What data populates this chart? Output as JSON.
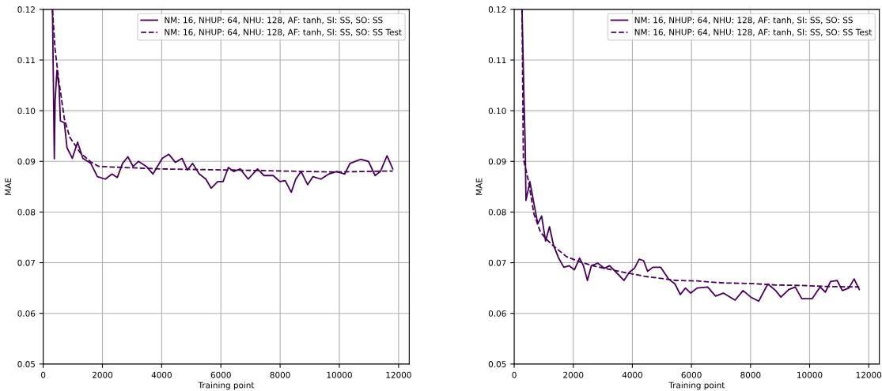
{
  "chart_data": [
    {
      "type": "line",
      "xlabel": "Training point",
      "ylabel": "MAE",
      "xlim": [
        0,
        12360
      ],
      "ylim": [
        0.05,
        0.12
      ],
      "xticks": [
        0,
        2000,
        4000,
        6000,
        8000,
        10000,
        12000
      ],
      "yticks": [
        0.05,
        0.06,
        0.07,
        0.08,
        0.09,
        {
          "value": 0.1,
          "label": "0.10"
        },
        0.11,
        0.12
      ],
      "grid": true,
      "legend": "top right",
      "series": [
        {
          "name": "NM: 16, NHUP: 64, NHU: 128, AF: tanh, SI: SS, SO: SS",
          "color": "#440154",
          "line_style": "solid",
          "x": [
            313,
            375,
            402,
            464,
            536,
            580,
            714,
            804,
            982,
            1161,
            1340,
            1607,
            1831,
            2099,
            2322,
            2500,
            2679,
            2858,
            3036,
            3215,
            3483,
            3706,
            4019,
            4242,
            4465,
            4688,
            4867,
            5045,
            5269,
            5492,
            5671,
            5894,
            6072,
            6251,
            6430,
            6653,
            6921,
            7233,
            7457,
            7769,
            7992,
            8171,
            8376,
            8528,
            8707,
            8930,
            9109,
            9377,
            9644,
            9912,
            10180,
            10359,
            10716,
            10984,
            11207,
            11386,
            11609,
            11805
          ],
          "values": [
            0.1199,
            0.0905,
            0.102,
            0.108,
            0.1046,
            0.098,
            0.0976,
            0.0927,
            0.0906,
            0.0938,
            0.0906,
            0.0896,
            0.087,
            0.0865,
            0.0875,
            0.0868,
            0.0896,
            0.0909,
            0.089,
            0.09,
            0.089,
            0.0875,
            0.0906,
            0.0914,
            0.0898,
            0.0906,
            0.0883,
            0.0896,
            0.0875,
            0.0865,
            0.0847,
            0.086,
            0.086,
            0.0888,
            0.088,
            0.0885,
            0.0865,
            0.0885,
            0.0872,
            0.0872,
            0.086,
            0.0862,
            0.0839,
            0.0865,
            0.088,
            0.0854,
            0.087,
            0.0865,
            0.0875,
            0.088,
            0.0875,
            0.0896,
            0.0904,
            0.09,
            0.0872,
            0.088,
            0.0911,
            0.0885
          ]
        },
        {
          "name": "NM: 16, NHUP: 64, NHU: 128, AF: tanh, SI: SS, SO: SS Test",
          "color": "#440154",
          "line_style": "dashed",
          "x": [
            313,
            402,
            536,
            714,
            893,
            1250,
            1607,
            1875,
            2679,
            4019,
            6251,
            8037,
            9823,
            11805
          ],
          "values": [
            0.1199,
            0.112,
            0.1056,
            0.0984,
            0.0948,
            0.0917,
            0.0899,
            0.089,
            0.0888,
            0.0885,
            0.0883,
            0.0881,
            0.0879,
            0.0881
          ]
        }
      ]
    },
    {
      "type": "line",
      "xlabel": "Training point",
      "ylabel": "MAE",
      "xlim": [
        0,
        12360
      ],
      "ylim": [
        0.05,
        0.12
      ],
      "xticks": [
        0,
        2000,
        4000,
        6000,
        8000,
        10000,
        12000
      ],
      "yticks": [
        0.05,
        0.06,
        0.07,
        0.08,
        0.09,
        {
          "value": 0.1,
          "label": "0.10"
        },
        0.11,
        0.12
      ],
      "grid": true,
      "legend": "top right",
      "series": [
        {
          "name": "NM: 16, NHUP: 64, NHU: 128, AF: tanh, SI: SS, SO: SS",
          "color": "#440154",
          "line_style": "solid",
          "x": [
            265,
            336,
            372,
            398,
            531,
            664,
            797,
            929,
            1062,
            1195,
            1328,
            1505,
            1682,
            1859,
            2036,
            2213,
            2345,
            2478,
            2611,
            2832,
            3053,
            3230,
            3452,
            3717,
            3894,
            4071,
            4230,
            4381,
            4514,
            4691,
            4956,
            5222,
            5443,
            5620,
            5797,
            5974,
            6195,
            6549,
            6815,
            7080,
            7478,
            7744,
            8010,
            8275,
            8585,
            8850,
            9027,
            9293,
            9514,
            9735,
            10089,
            10355,
            10532,
            10709,
            10930,
            11107,
            11328,
            11505,
            11682
          ],
          "values": [
            0.12,
            0.101,
            0.0933,
            0.0823,
            0.086,
            0.0818,
            0.0777,
            0.0792,
            0.0743,
            0.0771,
            0.0735,
            0.0709,
            0.0691,
            0.0694,
            0.0686,
            0.0709,
            0.0694,
            0.0665,
            0.0694,
            0.0699,
            0.0689,
            0.0694,
            0.0681,
            0.0665,
            0.0681,
            0.0689,
            0.0707,
            0.0704,
            0.0683,
            0.0691,
            0.0691,
            0.0668,
            0.0658,
            0.0637,
            0.065,
            0.064,
            0.065,
            0.0652,
            0.0634,
            0.064,
            0.0626,
            0.0645,
            0.0632,
            0.0624,
            0.0658,
            0.0645,
            0.0632,
            0.0647,
            0.0652,
            0.0629,
            0.0629,
            0.0652,
            0.0642,
            0.0663,
            0.0665,
            0.0645,
            0.065,
            0.0668,
            0.0647
          ]
        },
        {
          "name": "NM: 16, NHUP: 64, NHU: 128, AF: tanh, SI: SS, SO: SS Test",
          "color": "#440154",
          "line_style": "dashed",
          "x": [
            265,
            310,
            487,
            664,
            885,
            1062,
            1328,
            1770,
            2213,
            2655,
            3540,
            3982,
            4425,
            4956,
            5487,
            6195,
            7080,
            7965,
            8850,
            9735,
            10620,
            11682
          ],
          "values": [
            0.12,
            0.0906,
            0.086,
            0.0797,
            0.0761,
            0.0748,
            0.0733,
            0.0712,
            0.0702,
            0.0694,
            0.0683,
            0.0678,
            0.0673,
            0.0669,
            0.0665,
            0.0664,
            0.066,
            0.0659,
            0.0656,
            0.0655,
            0.0653,
            0.0652
          ]
        }
      ]
    }
  ]
}
